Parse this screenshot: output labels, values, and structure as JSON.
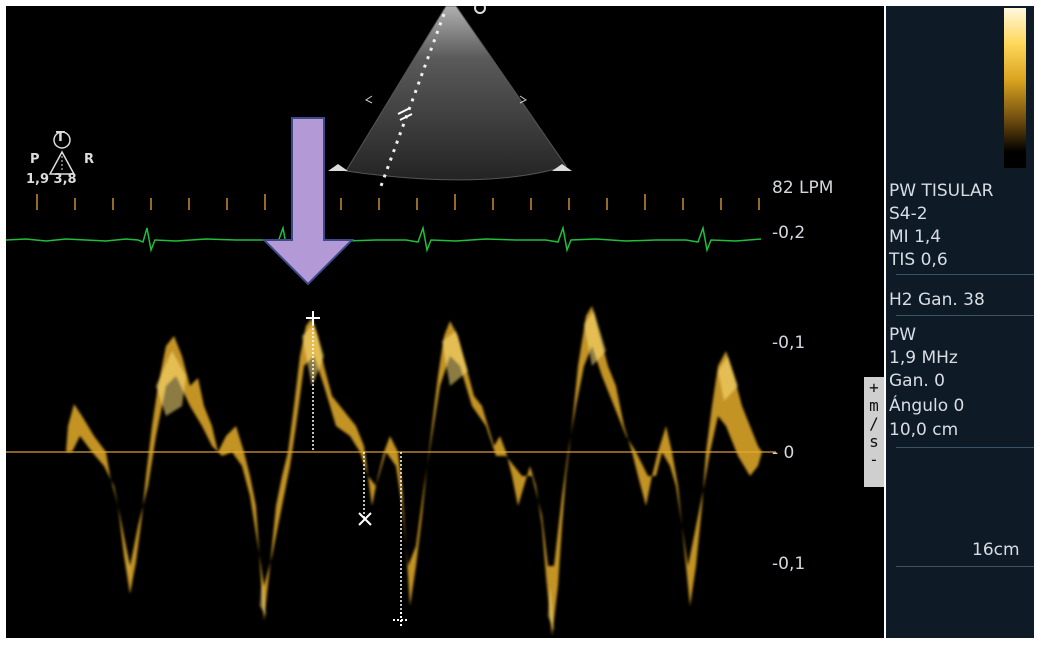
{
  "probe_marker": {
    "icon": "probe-orientation-icon",
    "letter": "T",
    "left": "P",
    "right": "R",
    "values": "1,9 3,8"
  },
  "heart_rate": "82 LPM",
  "scale_labels": {
    "top": "-0,2",
    "upper": "-0,1",
    "zero": "- 0",
    "lower": "-0,1"
  },
  "velocity_unit": {
    "plus": "+",
    "m": "m",
    "slash": "/",
    "s": "s",
    "minus": "-"
  },
  "side_panel": {
    "mode": "PW TISULAR",
    "probe": "S4-2",
    "mi": "MI 1,4",
    "tis": "TIS 0,6",
    "gain_h2": "H2  Gan. 38",
    "pw": "PW",
    "freq": "1,9 MHz",
    "gain": "Gan. 0",
    "angle": "Ángulo 0",
    "depth": "10,0 cm",
    "scale": "16cm"
  },
  "colors": {
    "spectrum": "#f3c53a",
    "ecg": "#1fbf3a",
    "arrow": "#b39ad6",
    "baseline": "#d79a3c",
    "ticks": "#c88a3a"
  },
  "annotations": {
    "arrow": "down-arrow-pointer",
    "markers": [
      "plus-marker",
      "x-marker",
      "dotted-plus-marker"
    ]
  }
}
